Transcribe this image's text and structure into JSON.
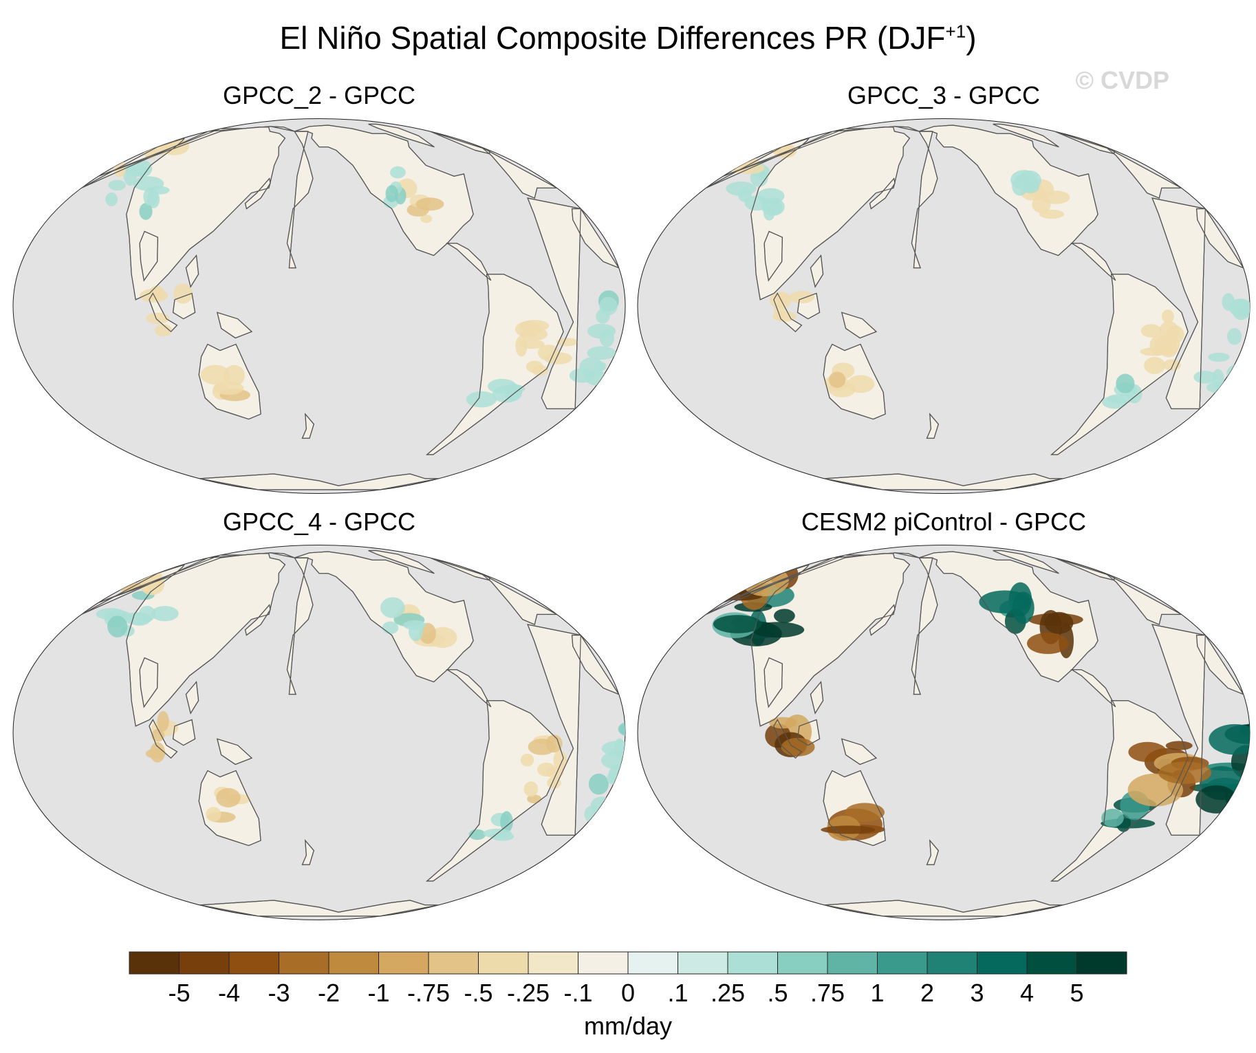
{
  "title": {
    "main": "El Niño Spatial Composite Differences PR (DJF",
    "superscript": "+1",
    "close": ")"
  },
  "watermark": "© CVDP",
  "panels": [
    {
      "title": "GPCC_2 - GPCC",
      "strength": 0.18
    },
    {
      "title": "GPCC_3 - GPCC",
      "strength": 0.18
    },
    {
      "title": "GPCC_4 - GPCC",
      "strength": 0.22
    },
    {
      "title": "CESM2 piControl - GPCC",
      "strength": 1.0
    }
  ],
  "colors": {
    "ocean": "#e3e3e3",
    "coast": "#555555"
  },
  "chart_data": {
    "type": "heatmap",
    "title": "El Niño Spatial Composite Differences PR (DJF+1)",
    "units": "mm/day",
    "levels": [
      "-5",
      "-4",
      "-3",
      "-2",
      "-1",
      "-.75",
      "-.5",
      "-.25",
      "-.1",
      "0",
      ".1",
      ".25",
      ".5",
      ".75",
      "1",
      "2",
      "3",
      "4",
      "5"
    ],
    "palette": [
      "#5a3209",
      "#773f0c",
      "#8e4f10",
      "#a86d26",
      "#c08a3e",
      "#d4a860",
      "#e3c387",
      "#eedbab",
      "#f3e7c9",
      "#f4f0e6",
      "#e5f2ef",
      "#cdeae4",
      "#acdfd6",
      "#88cfc2",
      "#5fb4a6",
      "#3a9a8c",
      "#1f8275",
      "#056a5d",
      "#01503f",
      "#003a2c"
    ],
    "projection": "Robinson, Pacific-centered"
  }
}
